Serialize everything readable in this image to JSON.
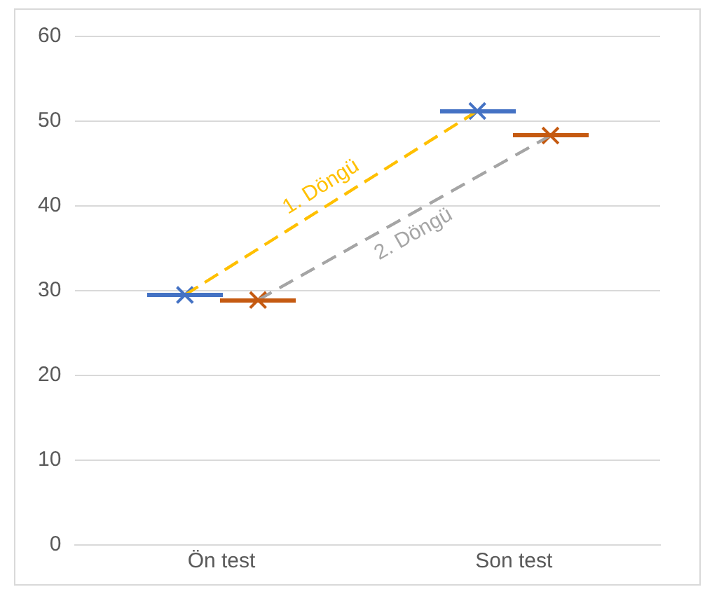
{
  "chart_data": {
    "type": "line",
    "categories": [
      "Ön test",
      "Son test"
    ],
    "series": [
      {
        "name": "1. Döngü",
        "color": "#ffc000",
        "colors": [
          "#4472c4",
          "#4472c4"
        ],
        "values": [
          29.5,
          51.2
        ]
      },
      {
        "name": "2. Döngü",
        "color": "#a5a5a5",
        "colors": [
          "#c55a11",
          "#c55a11"
        ],
        "values": [
          28.9,
          48.3
        ]
      }
    ],
    "ylim": [
      0,
      60
    ],
    "yticks": [
      0,
      10,
      20,
      30,
      40,
      50,
      60
    ],
    "grid": "y",
    "legend": false,
    "marker": "cross",
    "line_style": "dashed"
  }
}
